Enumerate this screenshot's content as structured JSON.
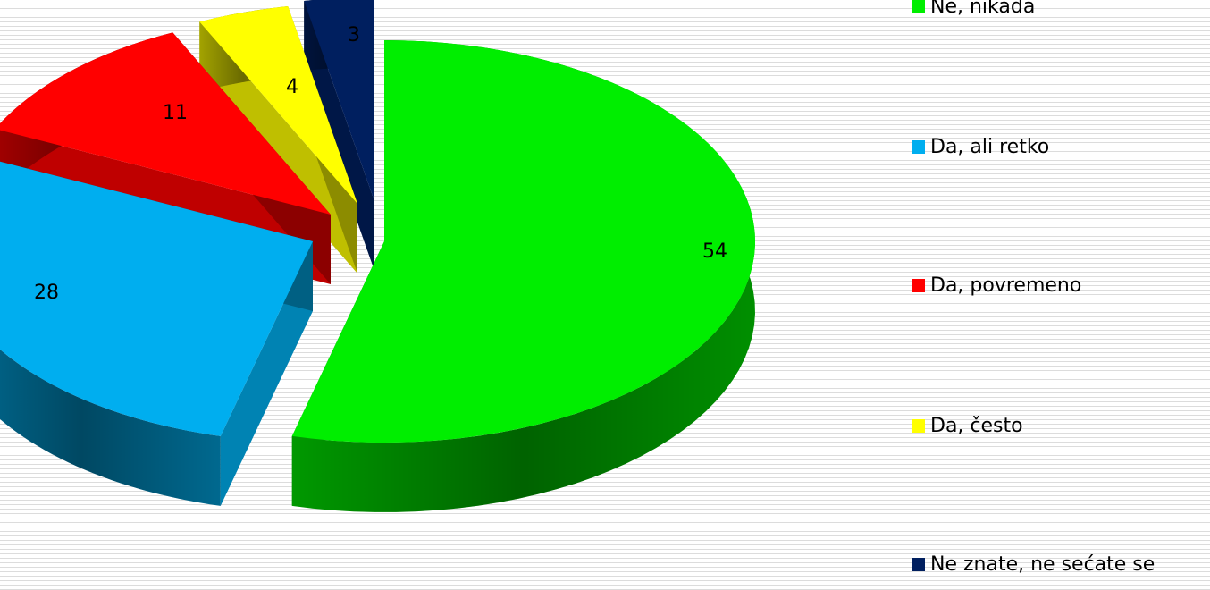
{
  "chart_data": {
    "type": "pie",
    "style": "3d-exploded",
    "categories": [
      "Ne, nikada",
      "Da, ali retko",
      "Da, povremeno",
      "Da, često",
      "Ne znate, ne sećate se"
    ],
    "values": [
      54,
      28,
      11,
      4,
      3
    ],
    "value_labels": [
      "54",
      "28",
      "11",
      "4",
      "3"
    ],
    "colors": [
      "#00ee00",
      "#00aeef",
      "#ff0000",
      "#ffff00",
      "#001f5f"
    ],
    "legend_position": "right"
  }
}
